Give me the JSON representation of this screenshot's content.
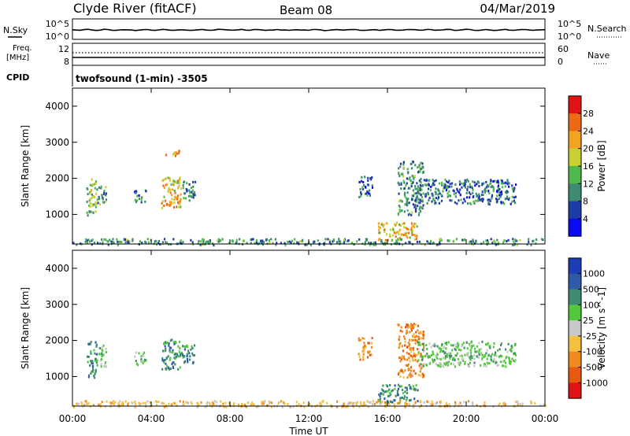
{
  "header": {
    "station": "Clyde River (fitACF)",
    "beam": "Beam 08",
    "date": "04/Mar/2019"
  },
  "noise_panel": {
    "left_label": "N.Sky",
    "left_ticks": [
      "10^5",
      "10^0"
    ],
    "right_label": "N.Search",
    "right_ticks": [
      "10^5",
      "10^0"
    ]
  },
  "freq_panel": {
    "left_label_line1": "Freq.",
    "left_label_line2": "[MHz]",
    "left_ticks": [
      "12",
      "8"
    ],
    "right_label": "Nave",
    "right_ticks": [
      "60",
      "0"
    ]
  },
  "cpid": {
    "label": "CPID",
    "text": "twofsound (1-min) -3505"
  },
  "chart_data": [
    {
      "type": "heatmap",
      "name": "Power",
      "ylabel": "Slant Range [km]",
      "xlabel": "Time UT",
      "ylim": [
        180,
        4500
      ],
      "xlim_hours": [
        0,
        24
      ],
      "xticks": [
        "00:00",
        "04:00",
        "08:00",
        "12:00",
        "16:00",
        "20:00",
        "00:00"
      ],
      "yticks": [
        1000,
        2000,
        3000,
        4000
      ],
      "colorbar": {
        "label": "Power [dB]",
        "ticks": [
          "4",
          "8",
          "12",
          "16",
          "20",
          "24",
          "28"
        ],
        "range": [
          0,
          30
        ],
        "colors": [
          "#0a0af0",
          "#1e3ca8",
          "#3f8a72",
          "#4fb84a",
          "#c8d032",
          "#f2a420",
          "#ec6a14",
          "#e01414"
        ]
      },
      "echo_regions": [
        {
          "t": [
            0.7,
            1.2
          ],
          "r": [
            1000,
            2000
          ],
          "level": 12
        },
        {
          "t": [
            1.2,
            1.7
          ],
          "r": [
            1300,
            1900
          ],
          "level": 8
        },
        {
          "t": [
            3.1,
            3.7
          ],
          "r": [
            1350,
            1700
          ],
          "level": 6
        },
        {
          "t": [
            4.5,
            5.5
          ],
          "r": [
            1200,
            2050
          ],
          "level": 18
        },
        {
          "t": [
            5.5,
            6.2
          ],
          "r": [
            1400,
            1950
          ],
          "level": 8
        },
        {
          "t": [
            4.7,
            5.4
          ],
          "r": [
            2650,
            2850
          ],
          "level": 20
        },
        {
          "t": [
            14.5,
            15.2
          ],
          "r": [
            1500,
            2100
          ],
          "level": 6
        },
        {
          "t": [
            15.5,
            17.5
          ],
          "r": [
            300,
            800
          ],
          "level": 18
        },
        {
          "t": [
            16.5,
            17.8
          ],
          "r": [
            1000,
            2500
          ],
          "level": 8
        },
        {
          "t": [
            17.5,
            22.5
          ],
          "r": [
            1300,
            2000
          ],
          "level": 6
        },
        {
          "t": [
            0,
            24
          ],
          "r": [
            180,
            350
          ],
          "level": 8
        }
      ]
    },
    {
      "type": "heatmap",
      "name": "Velocity",
      "ylabel": "Slant Range [km]",
      "xlabel": "Time UT",
      "ylim": [
        180,
        4500
      ],
      "xlim_hours": [
        0,
        24
      ],
      "xticks": [
        "00:00",
        "04:00",
        "08:00",
        "12:00",
        "16:00",
        "20:00",
        "00:00"
      ],
      "yticks": [
        1000,
        2000,
        3000,
        4000
      ],
      "colorbar": {
        "label": "Velocity [m s^-1]",
        "ticks": [
          "1000",
          "500",
          "100",
          "25",
          "-25",
          "-100",
          "-500",
          "-1000"
        ],
        "colors": [
          "#1e3cb4",
          "#2f5aa8",
          "#3f8a72",
          "#52c83c",
          "#c8c8c8",
          "#f4c040",
          "#f08a1e",
          "#e85a10",
          "#e01414"
        ]
      },
      "echo_regions": [
        {
          "t": [
            0.7,
            1.2
          ],
          "r": [
            1000,
            2000
          ],
          "level": 2
        },
        {
          "t": [
            1.2,
            1.7
          ],
          "r": [
            1300,
            1900
          ],
          "level": 3
        },
        {
          "t": [
            3.1,
            3.7
          ],
          "r": [
            1350,
            1700
          ],
          "level": 3
        },
        {
          "t": [
            4.5,
            5.5
          ],
          "r": [
            1200,
            2050
          ],
          "level": 2
        },
        {
          "t": [
            5.5,
            6.2
          ],
          "r": [
            1400,
            1950
          ],
          "level": 2
        },
        {
          "t": [
            14.5,
            15.2
          ],
          "r": [
            1500,
            2100
          ],
          "level": 6
        },
        {
          "t": [
            15.5,
            17.5
          ],
          "r": [
            300,
            800
          ],
          "level": 2
        },
        {
          "t": [
            16.5,
            17.8
          ],
          "r": [
            1000,
            2500
          ],
          "level": 6
        },
        {
          "t": [
            17.5,
            22.5
          ],
          "r": [
            1300,
            2000
          ],
          "level": 3
        },
        {
          "t": [
            0,
            24
          ],
          "r": [
            180,
            350
          ],
          "level": 5
        }
      ]
    }
  ]
}
